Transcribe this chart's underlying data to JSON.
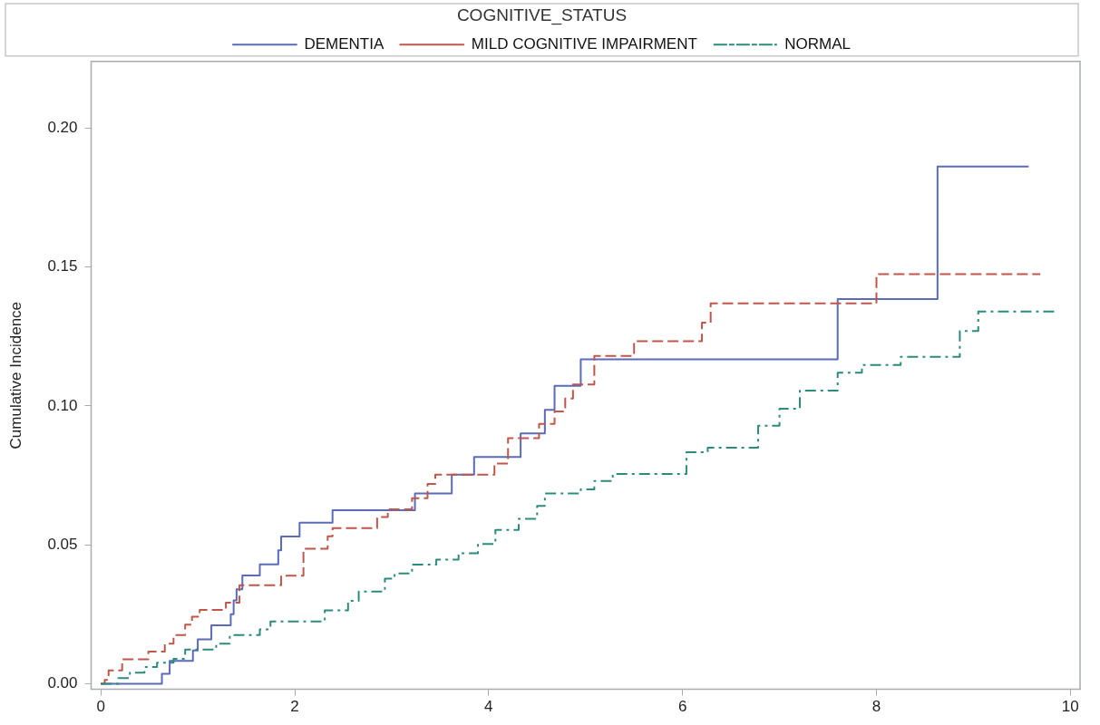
{
  "chart_data": {
    "type": "step",
    "ylabel": "Cumulative Incidence",
    "legend_title": "COGNITIVE_STATUS",
    "legend": "top",
    "grid": false,
    "marker": "none",
    "xlim": [
      -0.1,
      10.1
    ],
    "xticks": [
      0,
      2,
      4,
      6,
      8,
      10
    ],
    "ylim": [
      -0.002,
      0.224
    ],
    "yticks": [
      {
        "value": 0,
        "label": "0.00"
      },
      {
        "value": 0.05,
        "label": "0.05"
      },
      {
        "value": 0.1,
        "label": "0.10"
      },
      {
        "value": 0.15,
        "label": "0.15"
      },
      {
        "value": 0.2,
        "label": "0.20"
      }
    ],
    "series": [
      {
        "name": "DEMENTIA",
        "color": "#5b6bb8",
        "line_style": "solid",
        "x": [
          0,
          0.63,
          0.71,
          0.95,
          1.0,
          1.14,
          1.34,
          1.37,
          1.4,
          1.46,
          1.64,
          1.83,
          1.86,
          2.05,
          2.39,
          3.24,
          3.62,
          3.85,
          4.33,
          4.58,
          4.68,
          4.95,
          7.6,
          8.63,
          9.57
        ],
        "values": [
          0,
          0.0036,
          0.0082,
          0.012,
          0.016,
          0.021,
          0.025,
          0.03,
          0.034,
          0.039,
          0.043,
          0.048,
          0.053,
          0.058,
          0.0625,
          0.0685,
          0.0753,
          0.0816,
          0.0901,
          0.0986,
          0.1072,
          0.1168,
          0.1385,
          0.1862,
          0.1862
        ]
      },
      {
        "name": "MILD COGNITIVE IMPAIRMENT",
        "color": "#c0574a",
        "line_style": "dashed",
        "x": [
          0,
          0.04,
          0.08,
          0.22,
          0.49,
          0.66,
          0.75,
          0.87,
          0.94,
          1.02,
          1.29,
          1.43,
          1.86,
          2.09,
          2.34,
          2.39,
          2.85,
          2.96,
          3.21,
          3.37,
          3.45,
          4.06,
          4.2,
          4.52,
          4.68,
          4.79,
          4.87,
          5.09,
          5.5,
          6.2,
          6.29,
          8.0,
          9.69
        ],
        "values": [
          0,
          0.0014,
          0.0048,
          0.0088,
          0.0116,
          0.0144,
          0.0175,
          0.0213,
          0.0241,
          0.0266,
          0.0292,
          0.0355,
          0.0389,
          0.0486,
          0.0531,
          0.056,
          0.06,
          0.0628,
          0.0668,
          0.0719,
          0.0753,
          0.0793,
          0.0884,
          0.0935,
          0.098,
          0.1027,
          0.1077,
          0.118,
          0.1233,
          0.13,
          0.1369,
          0.1474,
          0.1474
        ]
      },
      {
        "name": "NORMAL",
        "color": "#2b8c7e",
        "line_style": "dashdot",
        "x": [
          0,
          0.18,
          0.3,
          0.45,
          0.58,
          0.75,
          0.87,
          1.19,
          1.33,
          1.64,
          1.75,
          2.31,
          2.55,
          2.66,
          2.93,
          3.03,
          3.21,
          3.46,
          3.69,
          3.89,
          4.07,
          4.31,
          4.5,
          4.58,
          4.95,
          5.09,
          5.28,
          6.04,
          6.26,
          6.78,
          7.0,
          7.21,
          7.6,
          7.85,
          8.25,
          8.86,
          9.05,
          9.85
        ],
        "values": [
          0,
          0.002,
          0.004,
          0.006,
          0.0076,
          0.009,
          0.0123,
          0.0144,
          0.0175,
          0.0196,
          0.0224,
          0.0264,
          0.0298,
          0.0332,
          0.0378,
          0.0397,
          0.0429,
          0.0447,
          0.047,
          0.0503,
          0.0554,
          0.0594,
          0.064,
          0.0685,
          0.07,
          0.073,
          0.0755,
          0.0833,
          0.085,
          0.0929,
          0.099,
          0.1055,
          0.112,
          0.1147,
          0.1177,
          0.127,
          0.134,
          0.134
        ]
      }
    ]
  }
}
